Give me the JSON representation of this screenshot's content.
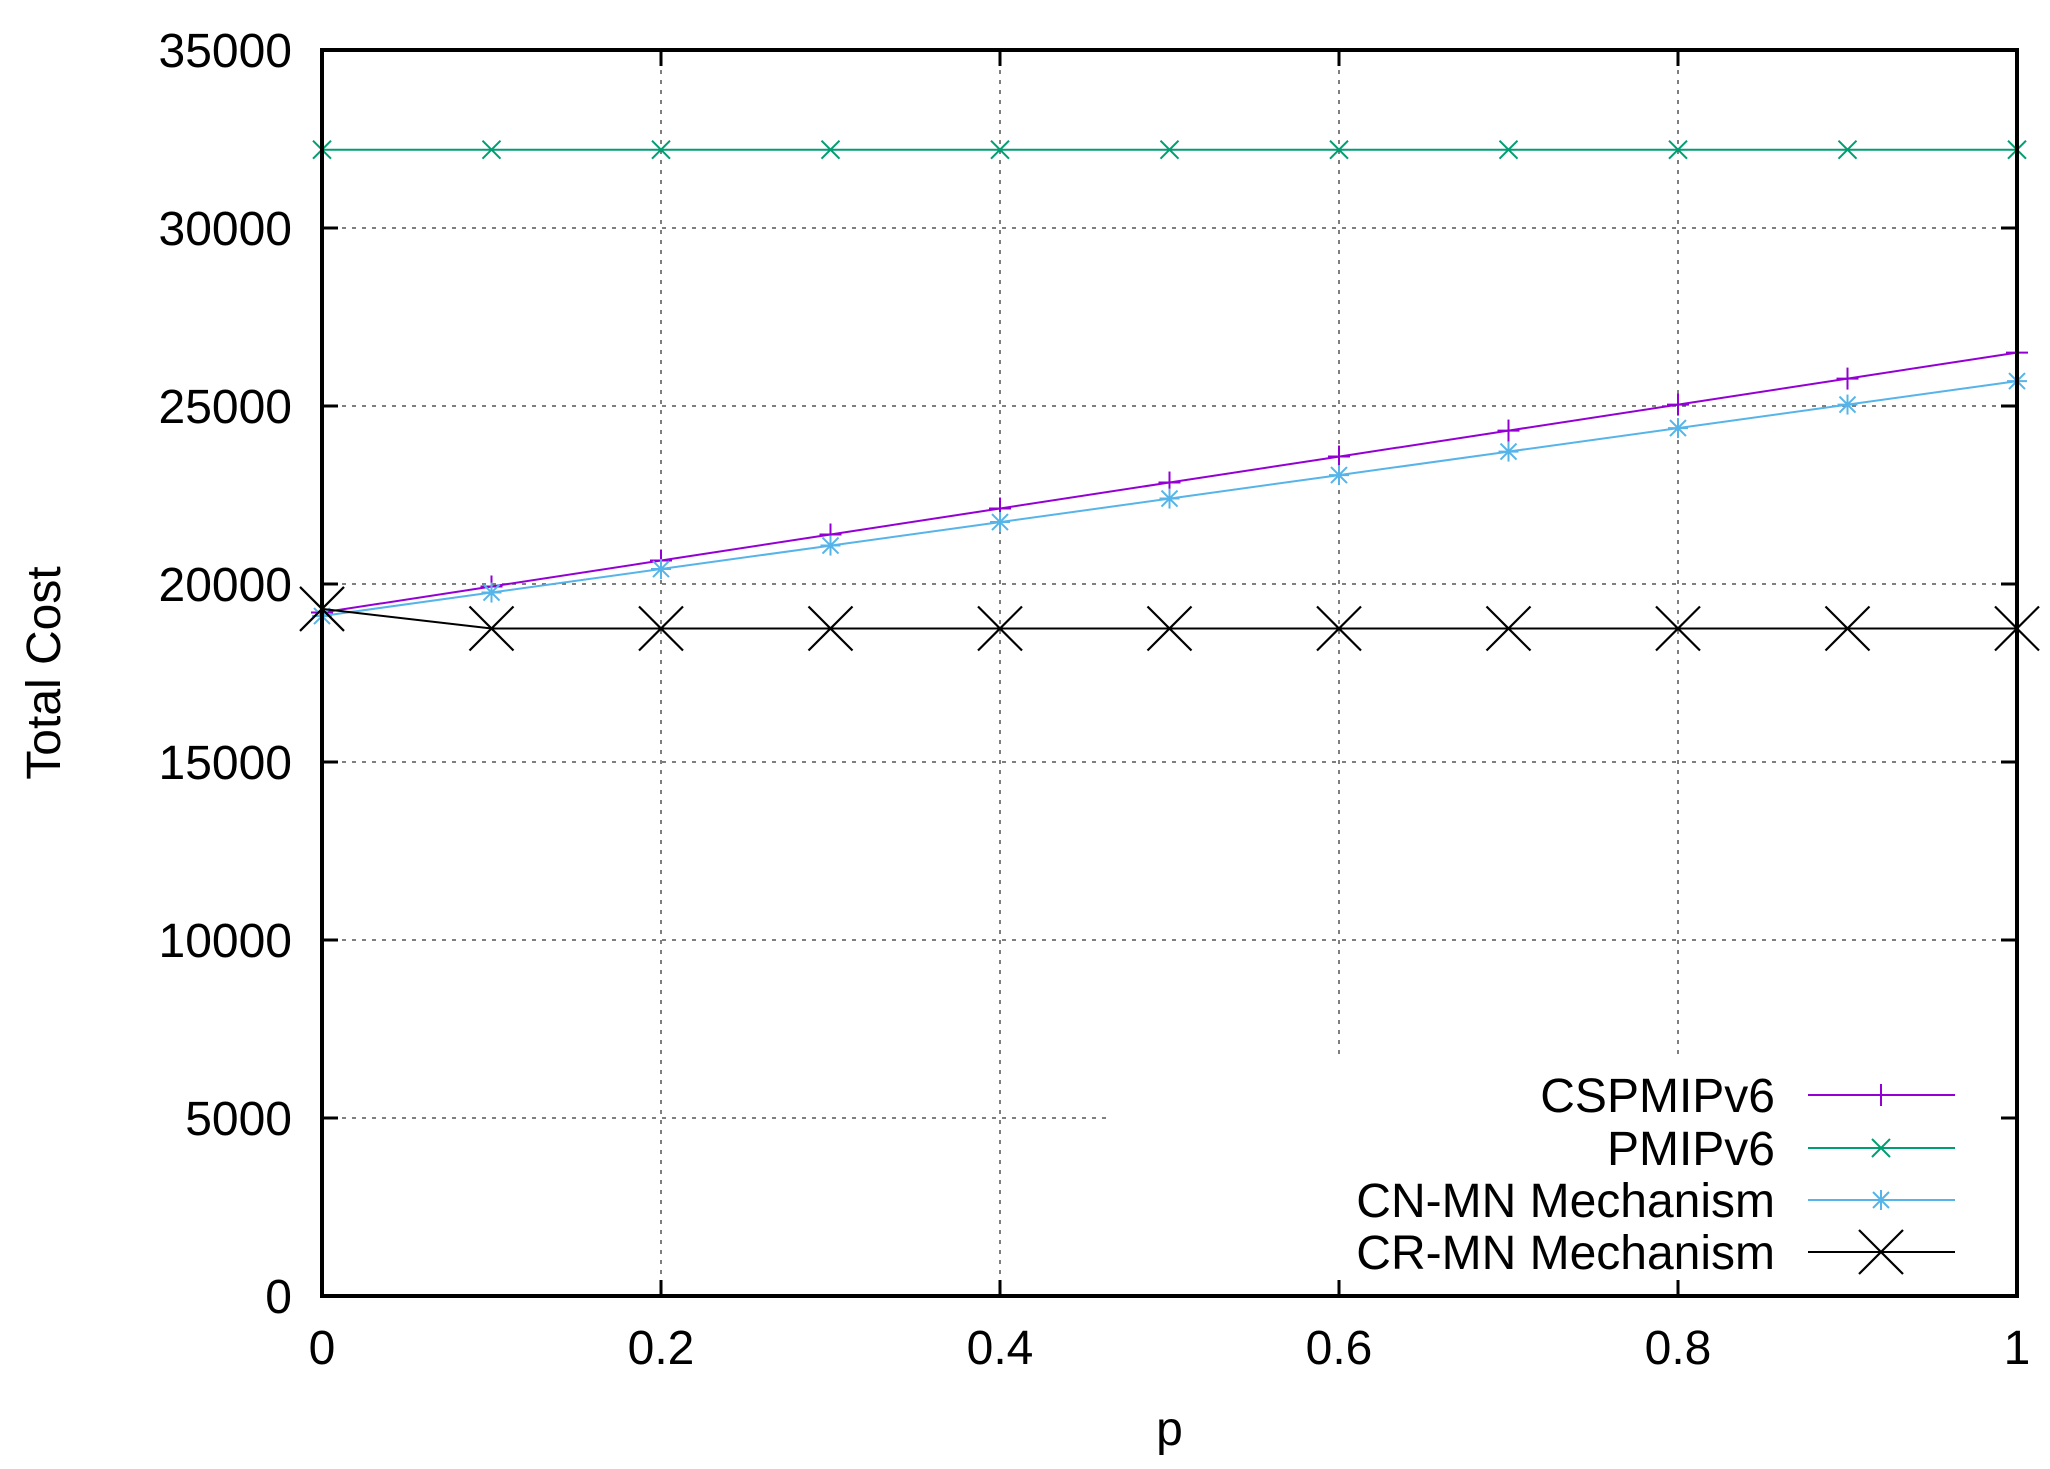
{
  "chart_data": {
    "type": "line",
    "title": "",
    "xlabel": "p",
    "ylabel": "Total Cost",
    "xlim": [
      0,
      1
    ],
    "ylim": [
      0,
      35000
    ],
    "x_ticks": [
      0,
      0.2,
      0.4,
      0.6,
      0.8,
      1
    ],
    "x_tick_labels": [
      "0",
      "0.2",
      "0.4",
      "0.6",
      "0.8",
      "1"
    ],
    "y_ticks": [
      0,
      5000,
      10000,
      15000,
      20000,
      25000,
      30000,
      35000
    ],
    "y_tick_labels": [
      "0",
      "5000",
      "10000",
      "15000",
      "20000",
      "25000",
      "30000",
      "35000"
    ],
    "grid": true,
    "legend_position": "bottom-right",
    "x": [
      0,
      0.1,
      0.2,
      0.3,
      0.4,
      0.5,
      0.6,
      0.7,
      0.8,
      0.9,
      1
    ],
    "series": [
      {
        "name": "CSPMIPv6",
        "color": "#9400d3",
        "marker": "plus",
        "values": [
          19200,
          19930,
          20660,
          21390,
          22120,
          22850,
          23580,
          24310,
          25040,
          25770,
          26500
        ]
      },
      {
        "name": "PMIPv6",
        "color": "#009e73",
        "marker": "x",
        "values": [
          32200,
          32200,
          32200,
          32200,
          32200,
          32200,
          32200,
          32200,
          32200,
          32200,
          32200
        ]
      },
      {
        "name": "CN-MN Mechanism",
        "color": "#56b4e9",
        "marker": "star",
        "values": [
          19100,
          19760,
          20420,
          21080,
          21740,
          22400,
          23060,
          23720,
          24380,
          25040,
          25700
        ]
      },
      {
        "name": "CR-MN Mechanism",
        "color": "#000000",
        "marker": "big-x",
        "values": [
          19300,
          18750,
          18750,
          18750,
          18750,
          18750,
          18750,
          18750,
          18750,
          18750,
          18750
        ]
      }
    ]
  }
}
